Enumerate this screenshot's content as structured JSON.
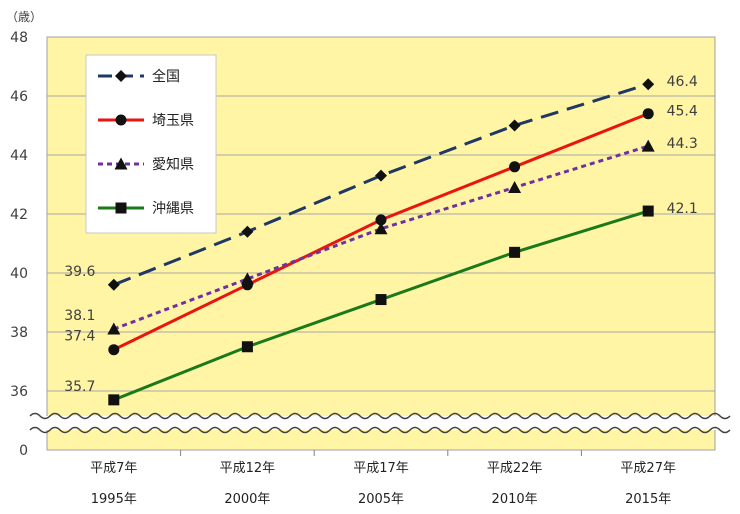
{
  "chart_data": {
    "type": "line",
    "unit_label": "（歳）",
    "categories": [
      "平成7年",
      "平成12年",
      "平成17年",
      "平成22年",
      "平成27年"
    ],
    "categories_sub": [
      "1995年",
      "2000年",
      "2005年",
      "2010年",
      "2015年"
    ],
    "y_ticks": [
      0,
      36,
      38,
      40,
      42,
      44,
      46,
      48
    ],
    "ylim": [
      35,
      48
    ],
    "axis_break": true,
    "grid": true,
    "legend_position": "top-left",
    "background": "#fff5a5",
    "series": [
      {
        "name": "全国",
        "color": "#1f3864",
        "dash": "dashed",
        "marker": "diamond",
        "values": [
          39.6,
          41.4,
          43.3,
          45.0,
          46.4
        ],
        "labels": {
          "0": "39.6",
          "4": "46.4"
        }
      },
      {
        "name": "埼玉県",
        "color": "#e8160f",
        "dash": "solid",
        "marker": "circle",
        "values": [
          37.4,
          39.6,
          41.8,
          43.6,
          45.4
        ],
        "labels": {
          "0": "37.4",
          "4": "45.4"
        }
      },
      {
        "name": "愛知県",
        "color": "#7030a0",
        "dash": "dotted",
        "marker": "triangle",
        "values": [
          38.1,
          39.8,
          41.5,
          42.9,
          44.3
        ],
        "labels": {
          "0": "38.1",
          "4": "44.3"
        }
      },
      {
        "name": "沖縄県",
        "color": "#1a7a1a",
        "dash": "solid",
        "marker": "square",
        "values": [
          35.7,
          37.5,
          39.1,
          40.7,
          42.1
        ],
        "labels": {
          "0": "35.7",
          "4": "42.1"
        }
      }
    ]
  }
}
